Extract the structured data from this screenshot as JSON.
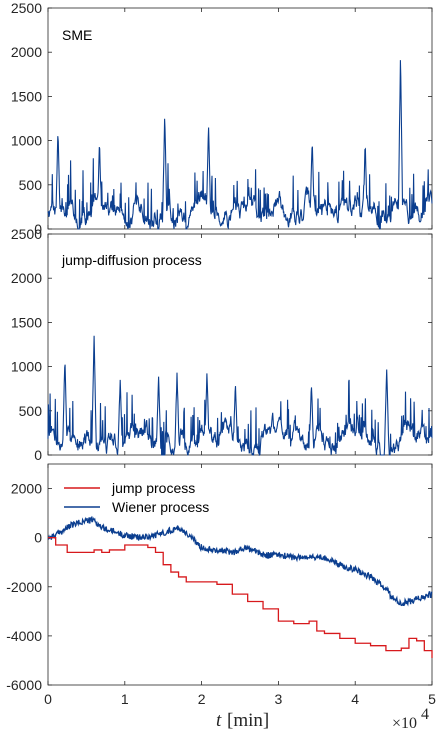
{
  "chart_data": [
    {
      "type": "line",
      "title": "SME",
      "x": [
        0,
        2500,
        5000,
        7500,
        10000,
        12500,
        15000,
        17500,
        20000,
        22500,
        25000,
        27500,
        30000,
        32500,
        35000,
        37500,
        40000,
        42500,
        45000,
        46000,
        47500,
        50000
      ],
      "xlim": [
        0,
        50000
      ],
      "ylim": [
        0,
        2500
      ],
      "yticks": [
        "0",
        "500",
        "1000",
        "1500",
        "2000",
        "2500"
      ],
      "series": [
        {
          "color": "#0b3e8f",
          "peaks_x": [
            1300,
            6700,
            15200,
            20900,
            34400,
            41300,
            45900
          ],
          "peaks_y": [
            1120,
            970,
            1300,
            1190,
            1000,
            960,
            1980
          ],
          "baseline_mean": 220
        }
      ]
    },
    {
      "type": "line",
      "title": "jump-diffusion process",
      "x": [
        0,
        2500,
        5000,
        7500,
        10000,
        12500,
        15000,
        17500,
        20000,
        22500,
        25000,
        27500,
        30000,
        32500,
        35000,
        37500,
        40000,
        42500,
        45000,
        47500,
        50000
      ],
      "xlim": [
        0,
        50000
      ],
      "ylim": [
        0,
        2500
      ],
      "yticks": [
        "0",
        "500",
        "1000",
        "1500",
        "2000",
        "2500"
      ],
      "series": [
        {
          "color": "#0b3e8f",
          "peaks_x": [
            2200,
            6000,
            9400,
            14400,
            16800,
            20700,
            24400,
            34300,
            44100
          ],
          "peaks_y": [
            1100,
            1350,
            840,
            860,
            910,
            930,
            800,
            800,
            950
          ],
          "baseline_mean": 200
        }
      ]
    },
    {
      "type": "line",
      "title": "",
      "x": [
        0,
        1000,
        2000,
        3000,
        4000,
        5000,
        6000,
        7000,
        8000,
        9000,
        10000,
        12000,
        14000,
        15000,
        16000,
        17000,
        18000,
        20000,
        22000,
        24000,
        26000,
        28000,
        30000,
        32000,
        34000,
        36000,
        38000,
        40000,
        42000,
        44000,
        45000,
        46000,
        47000,
        48000,
        49000,
        50000
      ],
      "xlim": [
        0,
        50000
      ],
      "ylim": [
        -6000,
        3000
      ],
      "yticks": [
        "-6000",
        "-4000",
        "-2000",
        "0",
        "2000"
      ],
      "legend": "top-left",
      "series": [
        {
          "name": "jump process",
          "color": "#d7191c",
          "x": [
            0,
            1000,
            2500,
            4000,
            5000,
            6000,
            7000,
            8000,
            9000,
            10000,
            11000,
            12000,
            13000,
            14000,
            15000,
            16000,
            17000,
            18000,
            20000,
            22000,
            24000,
            26000,
            28000,
            30000,
            32000,
            34000,
            35000,
            36000,
            38000,
            40000,
            42000,
            44000,
            45000,
            46000,
            47000,
            48000,
            49000,
            50000
          ],
          "y": [
            0,
            -300,
            -600,
            -600,
            -600,
            -500,
            -600,
            -500,
            -500,
            -300,
            -300,
            -300,
            -400,
            -600,
            -1100,
            -1400,
            -1600,
            -1800,
            -1800,
            -1900,
            -2300,
            -2600,
            -2900,
            -3400,
            -3500,
            -3400,
            -3800,
            -3900,
            -4100,
            -4300,
            -4400,
            -4600,
            -4600,
            -4500,
            -4100,
            -4200,
            -4600,
            -4900
          ]
        },
        {
          "name": "Wiener process",
          "color": "#0b3e8f",
          "x": [
            0,
            1000,
            2000,
            3000,
            4000,
            5000,
            6000,
            7000,
            8000,
            9000,
            10000,
            12000,
            14000,
            16000,
            17000,
            18000,
            20000,
            22000,
            24000,
            26000,
            28000,
            30000,
            32000,
            34000,
            36000,
            38000,
            40000,
            42000,
            44000,
            45000,
            46000,
            47000,
            48000,
            49000,
            50000
          ],
          "y": [
            0,
            100,
            300,
            500,
            600,
            700,
            700,
            400,
            300,
            200,
            100,
            0,
            100,
            300,
            400,
            200,
            -400,
            -500,
            -600,
            -400,
            -700,
            -700,
            -800,
            -800,
            -800,
            -1100,
            -1300,
            -1600,
            -2100,
            -2500,
            -2700,
            -2600,
            -2500,
            -2400,
            -2300
          ]
        }
      ],
      "xticks": [
        "0",
        "1",
        "2",
        "3",
        "4",
        "5"
      ],
      "xlabel_italic": "t",
      "xlabel_unit": "[min]",
      "x_multiplier": "×10",
      "x_multiplier_exp": "4"
    }
  ]
}
